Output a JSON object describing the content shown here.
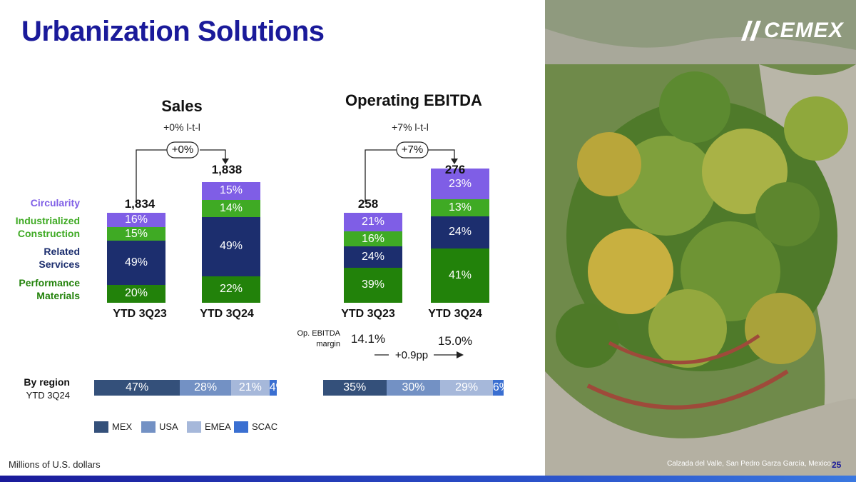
{
  "page": {
    "title": "Urbanization Solutions",
    "footnote": "Millions of U.S. dollars",
    "photo_caption": "Calzada del Valle, San Pedro Garza García, Mexico",
    "page_number": "25",
    "logo_text": "CEMEX"
  },
  "colors": {
    "circularity": "#7f5ee6",
    "industrialized": "#3faa24",
    "related": "#1c2e6e",
    "performance": "#22820a",
    "MEX": "#34507a",
    "USA": "#7391c4",
    "EMEA": "#a6b8da",
    "SCAC": "#3a6fd1"
  },
  "categories_legend": {
    "circularity": "Circularity",
    "industrialized_1": "Industrialized",
    "industrialized_2": "Construction",
    "related_1": "Related",
    "related_2": "Services",
    "performance_1": "Performance",
    "performance_2": "Materials"
  },
  "chart_data": [
    {
      "type": "bar",
      "title": "Sales",
      "subtitle": "+0% l-t-l",
      "change_label": "+0%",
      "categories": [
        "YTD 3Q23",
        "YTD 3Q24"
      ],
      "totals": [
        "1,834",
        "1,838"
      ],
      "stack_order_bottom_to_top": [
        "Performance Materials",
        "Related Services",
        "Industrialized Construction",
        "Circularity"
      ],
      "series": [
        {
          "name": "Performance Materials",
          "values": [
            20,
            22
          ],
          "labels": [
            "20%",
            "22%"
          ]
        },
        {
          "name": "Related Services",
          "values": [
            49,
            49
          ],
          "labels": [
            "49%",
            "49%"
          ]
        },
        {
          "name": "Industrialized Construction",
          "values": [
            15,
            14
          ],
          "labels": [
            "15%",
            "14%"
          ]
        },
        {
          "name": "Circularity",
          "values": [
            16,
            15
          ],
          "labels": [
            "16%",
            "15%"
          ]
        }
      ]
    },
    {
      "type": "bar",
      "title": "Operating EBITDA",
      "subtitle": "+7% l-t-l",
      "change_label": "+7%",
      "categories": [
        "YTD 3Q23",
        "YTD 3Q24"
      ],
      "totals": [
        "258",
        "276"
      ],
      "series": [
        {
          "name": "Performance Materials",
          "values": [
            39,
            41
          ],
          "labels": [
            "39%",
            "41%"
          ]
        },
        {
          "name": "Related Services",
          "values": [
            24,
            24
          ],
          "labels": [
            "24%",
            "24%"
          ]
        },
        {
          "name": "Industrialized Construction",
          "values": [
            16,
            13
          ],
          "labels": [
            "16%",
            "13%"
          ]
        },
        {
          "name": "Circularity",
          "values": [
            21,
            23
          ],
          "labels": [
            "21%",
            "23%"
          ]
        }
      ],
      "margin_label_1": "Op. EBITDA",
      "margin_label_2": "margin",
      "margins": [
        "14.1%",
        "15.0%"
      ],
      "margin_change": "+0.9pp"
    },
    {
      "type": "bar",
      "title": "By region",
      "subtitle": "YTD 3Q24",
      "series_names": [
        "MEX",
        "USA",
        "EMEA",
        "SCAC"
      ],
      "sales_values": [
        47,
        28,
        21,
        4
      ],
      "sales_labels": [
        "47%",
        "28%",
        "21%",
        "4%"
      ],
      "ebitda_values": [
        35,
        30,
        29,
        6
      ],
      "ebitda_labels": [
        "35%",
        "30%",
        "29%",
        "6%"
      ]
    }
  ]
}
